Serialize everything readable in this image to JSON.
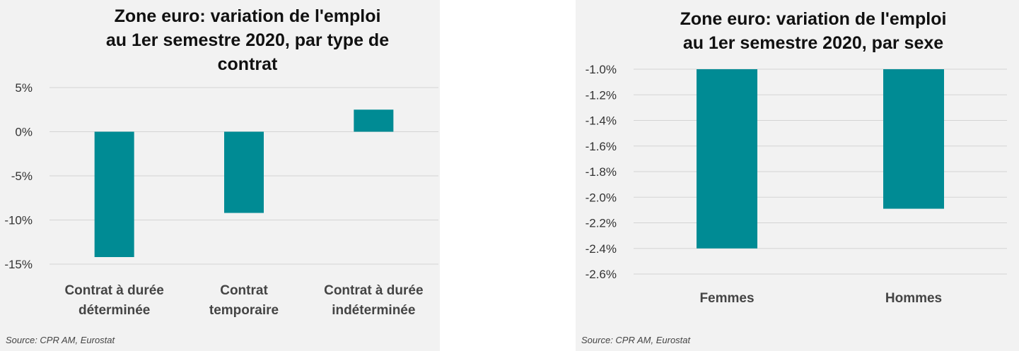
{
  "chart_data": [
    {
      "type": "bar",
      "title": [
        "Zone euro: variation de l'emploi",
        "au 1er semestre 2020, par type de",
        "contrat"
      ],
      "categories": [
        [
          "Contrat à durée",
          "déterminée"
        ],
        [
          "Contrat",
          "temporaire"
        ],
        [
          "Contrat à durée",
          "indéterminée"
        ]
      ],
      "values": [
        -14.2,
        -9.2,
        2.5
      ],
      "ylim": [
        -15,
        5
      ],
      "yticks": [
        5,
        0,
        -5,
        -10,
        -15
      ],
      "ytick_labels": [
        "5%",
        "0%",
        "-5%",
        "-10%",
        "-15%"
      ],
      "grid": true,
      "color": "#008b94",
      "source": "Source: CPR AM, Eurostat"
    },
    {
      "type": "bar",
      "title": [
        "Zone euro: variation de l'emploi",
        "au 1er semestre 2020, par sexe"
      ],
      "categories": [
        [
          "Femmes"
        ],
        [
          "Hommes"
        ]
      ],
      "values": [
        -2.4,
        -2.09
      ],
      "ylim": [
        -2.6,
        -1.0
      ],
      "yticks": [
        -1.0,
        -1.2,
        -1.4,
        -1.6,
        -1.8,
        -2.0,
        -2.2,
        -2.4,
        -2.6
      ],
      "ytick_labels": [
        "-1.0%",
        "-1.2%",
        "-1.4%",
        "-1.6%",
        "-1.8%",
        "-2.0%",
        "-2.2%",
        "-2.4%",
        "-2.6%"
      ],
      "grid": true,
      "color": "#008b94",
      "source": "Source: CPR AM, Eurostat"
    }
  ]
}
